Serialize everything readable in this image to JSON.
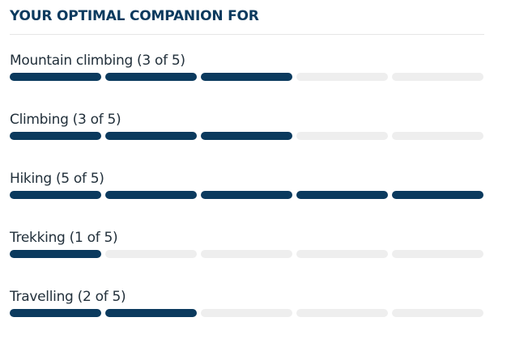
{
  "header": {
    "title": "YOUR OPTIMAL COMPANION FOR"
  },
  "colors": {
    "filled": "#0b3a5e",
    "empty": "#eeeeee",
    "title": "#0b3a5e"
  },
  "ratings": [
    {
      "label": "Mountain climbing (3 of 5)",
      "value": 3,
      "max": 5
    },
    {
      "label": "Climbing (3 of 5)",
      "value": 3,
      "max": 5
    },
    {
      "label": "Hiking (5 of 5)",
      "value": 5,
      "max": 5
    },
    {
      "label": "Trekking (1 of 5)",
      "value": 1,
      "max": 5
    },
    {
      "label": "Travelling (2 of 5)",
      "value": 2,
      "max": 5
    }
  ]
}
